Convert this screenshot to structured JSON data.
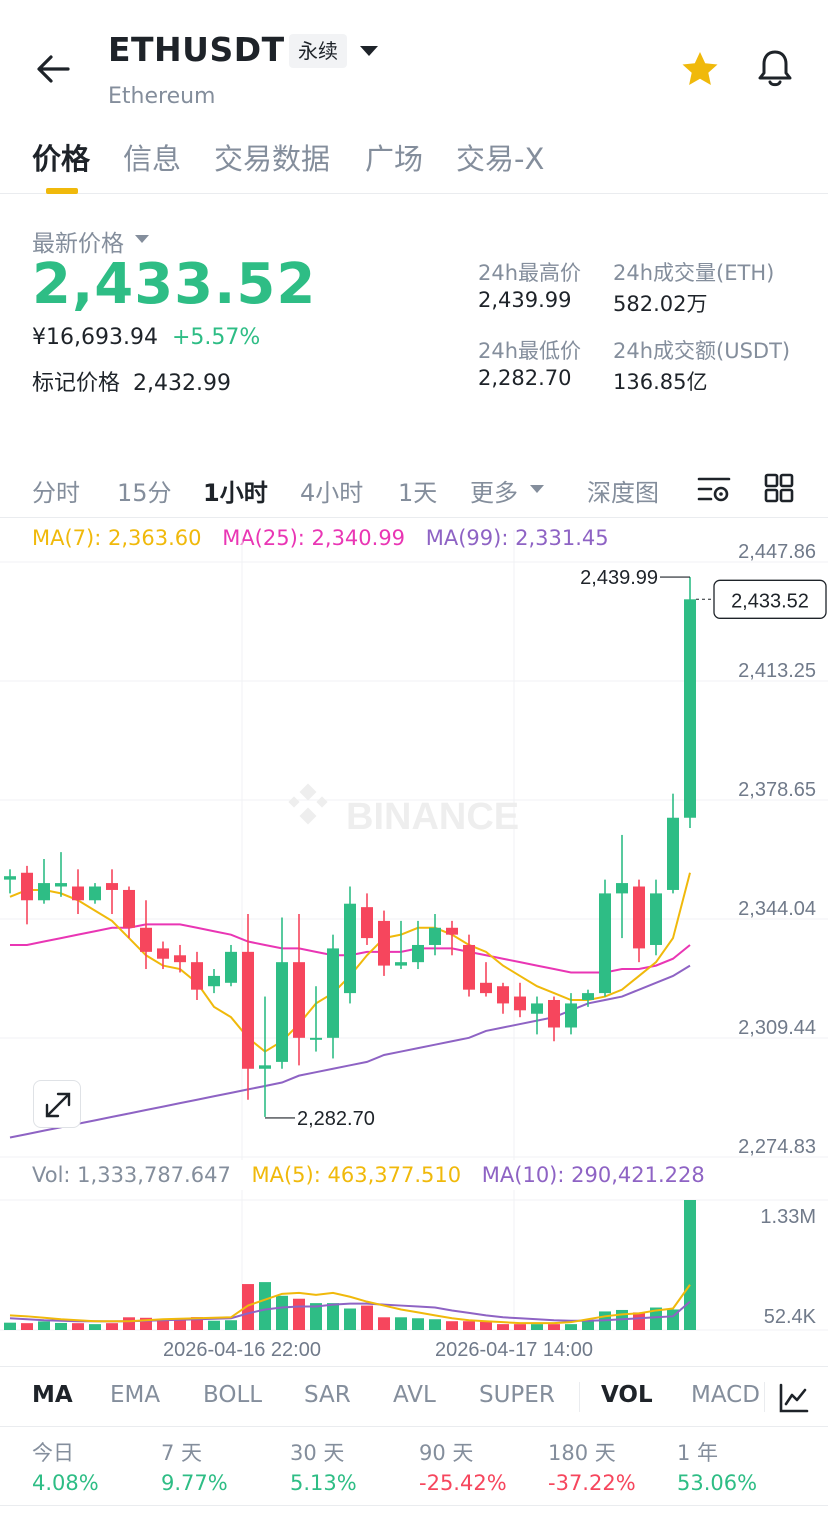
{
  "header": {
    "symbol": "ETHUSDT",
    "badge": "永续",
    "subtitle": "Ethereum"
  },
  "tabs": [
    {
      "label": "价格",
      "active": true
    },
    {
      "label": "信息"
    },
    {
      "label": "交易数据"
    },
    {
      "label": "广场"
    },
    {
      "label": "交易-X"
    }
  ],
  "price": {
    "last_label": "最新价格",
    "last": "2,433.52",
    "cny": "¥16,693.94",
    "change": "+5.57%",
    "mark_label": "标记价格",
    "mark": "2,432.99"
  },
  "stats": {
    "high_label": "24h最高价",
    "high": "2,439.99",
    "vol_label": "24h成交量(ETH)",
    "vol": "582.02万",
    "low_label": "24h最低价",
    "low": "2,282.70",
    "turnover_label": "24h成交额(USDT)",
    "turnover": "136.85亿"
  },
  "intervals": [
    {
      "label": "分时"
    },
    {
      "label": "15分"
    },
    {
      "label": "1小时",
      "active": true
    },
    {
      "label": "4小时"
    },
    {
      "label": "1天"
    },
    {
      "label": "更多"
    },
    {
      "label": "深度图"
    }
  ],
  "ma_legend": {
    "ma7": "MA(7): 2,363.60",
    "ma25": "MA(25): 2,340.99",
    "ma99": "MA(99): 2,331.45"
  },
  "vol_legend": {
    "vol": "Vol: 1,333,787.647",
    "ma5": "MA(5): 463,377.510",
    "ma10": "MA(10): 290,421.228"
  },
  "colors": {
    "up": "#2ebd85",
    "down": "#f6465d",
    "ma7": "#f0b90b",
    "ma25": "#e936b4",
    "ma99": "#8e63c4",
    "accent": "#f0b90b"
  },
  "chart_data": {
    "type": "candlestick",
    "price_axis": [
      "2,447.86",
      "2,413.25",
      "2,378.65",
      "2,344.04",
      "2,309.44",
      "2,274.83"
    ],
    "ylim": [
      2274.83,
      2447.86
    ],
    "current_price": 2433.52,
    "current_price_label": "2,433.52",
    "high_marker": 2439.99,
    "high_marker_label": "2,439.99",
    "low_marker": 2282.7,
    "low_marker_label": "2,282.70",
    "x_labels": [
      "2026-04-16 22:00",
      "2026-04-17 14:00"
    ],
    "watermark": "BINANCE",
    "candles": [
      {
        "o": 2352,
        "c": 2353,
        "h": 2355,
        "l": 2348
      },
      {
        "o": 2354,
        "c": 2346,
        "h": 2356,
        "l": 2339
      },
      {
        "o": 2346,
        "c": 2351,
        "h": 2358,
        "l": 2345
      },
      {
        "o": 2350,
        "c": 2351,
        "h": 2360,
        "l": 2347
      },
      {
        "o": 2350,
        "c": 2346,
        "h": 2355,
        "l": 2342
      },
      {
        "o": 2346,
        "c": 2350,
        "h": 2351,
        "l": 2345
      },
      {
        "o": 2351,
        "c": 2349,
        "h": 2355,
        "l": 2342
      },
      {
        "o": 2349,
        "c": 2338,
        "h": 2350,
        "l": 2335
      },
      {
        "o": 2338,
        "c": 2331,
        "h": 2346,
        "l": 2326
      },
      {
        "o": 2332,
        "c": 2329,
        "h": 2334,
        "l": 2326
      },
      {
        "o": 2330,
        "c": 2328,
        "h": 2333,
        "l": 2325
      },
      {
        "o": 2328,
        "c": 2320,
        "h": 2331,
        "l": 2317
      },
      {
        "o": 2321,
        "c": 2324,
        "h": 2326,
        "l": 2319
      },
      {
        "o": 2322,
        "c": 2331,
        "h": 2333,
        "l": 2321
      },
      {
        "o": 2331,
        "c": 2297,
        "h": 2342,
        "l": 2288
      },
      {
        "o": 2297,
        "c": 2298,
        "h": 2318,
        "l": 2283
      },
      {
        "o": 2299,
        "c": 2328,
        "h": 2341,
        "l": 2297
      },
      {
        "o": 2328,
        "c": 2306,
        "h": 2342,
        "l": 2298
      },
      {
        "o": 2306,
        "c": 2306,
        "h": 2321,
        "l": 2302
      },
      {
        "o": 2306,
        "c": 2332,
        "h": 2336,
        "l": 2300
      },
      {
        "o": 2319,
        "c": 2345,
        "h": 2350,
        "l": 2316
      },
      {
        "o": 2344,
        "c": 2335,
        "h": 2348,
        "l": 2333
      },
      {
        "o": 2340,
        "c": 2327,
        "h": 2343,
        "l": 2324
      },
      {
        "o": 2327,
        "c": 2328,
        "h": 2340,
        "l": 2326
      },
      {
        "o": 2328,
        "c": 2333,
        "h": 2340,
        "l": 2326
      },
      {
        "o": 2333,
        "c": 2338,
        "h": 2342,
        "l": 2330
      },
      {
        "o": 2338,
        "c": 2336,
        "h": 2340,
        "l": 2330
      },
      {
        "o": 2333,
        "c": 2320,
        "h": 2336,
        "l": 2318
      },
      {
        "o": 2322,
        "c": 2319,
        "h": 2328,
        "l": 2318
      },
      {
        "o": 2321,
        "c": 2316,
        "h": 2322,
        "l": 2313
      },
      {
        "o": 2318,
        "c": 2314,
        "h": 2322,
        "l": 2312
      },
      {
        "o": 2313,
        "c": 2316,
        "h": 2318,
        "l": 2307
      },
      {
        "o": 2317,
        "c": 2309,
        "h": 2318,
        "l": 2305
      },
      {
        "o": 2309,
        "c": 2316,
        "h": 2319,
        "l": 2307
      },
      {
        "o": 2317,
        "c": 2319,
        "h": 2320,
        "l": 2315
      },
      {
        "o": 2319,
        "c": 2348,
        "h": 2352,
        "l": 2318
      },
      {
        "o": 2348,
        "c": 2351,
        "h": 2365,
        "l": 2335
      },
      {
        "o": 2350,
        "c": 2332,
        "h": 2352,
        "l": 2328
      },
      {
        "o": 2333,
        "c": 2348,
        "h": 2352,
        "l": 2330
      },
      {
        "o": 2349,
        "c": 2370,
        "h": 2377,
        "l": 2348
      },
      {
        "o": 2370,
        "c": 2433.52,
        "h": 2439.99,
        "l": 2367
      }
    ],
    "ma7": [
      2347,
      2349,
      2349,
      2348,
      2346,
      2343,
      2340,
      2335,
      2330,
      2327,
      2326,
      2322,
      2315,
      2312,
      2306,
      2302,
      2305,
      2310,
      2316,
      2319,
      2324,
      2330,
      2335,
      2336,
      2338,
      2338,
      2336,
      2333,
      2331,
      2327,
      2324,
      2321,
      2319,
      2317,
      2317,
      2318,
      2320,
      2324,
      2328,
      2335,
      2354
    ],
    "ma25": [
      2333,
      2333,
      2334,
      2335,
      2336,
      2337,
      2338,
      2338,
      2339,
      2339,
      2339,
      2338,
      2337,
      2336,
      2334,
      2333,
      2332,
      2332,
      2331,
      2330,
      2330,
      2331,
      2331,
      2331,
      2332,
      2332,
      2332,
      2331,
      2330,
      2329,
      2328,
      2327,
      2326,
      2325,
      2325,
      2325,
      2326,
      2326,
      2327,
      2329,
      2333
    ],
    "ma99": [
      2277,
      2278,
      2279,
      2280,
      2281,
      2282,
      2283,
      2284,
      2285,
      2286,
      2287,
      2288,
      2289,
      2290,
      2291,
      2292,
      2293,
      2295,
      2296,
      2297,
      2298,
      2299,
      2301,
      2302,
      2303,
      2304,
      2305,
      2306,
      2308,
      2309,
      2310,
      2311,
      2312,
      2314,
      2316,
      2317,
      2318,
      2320,
      2322,
      2324,
      2327
    ],
    "volume_axis": [
      "1.33M",
      "52.4K"
    ],
    "volumes": [
      75,
      70,
      88,
      72,
      70,
      60,
      70,
      130,
      125,
      105,
      110,
      132,
      95,
      100,
      470,
      490,
      350,
      320,
      275,
      275,
      220,
      250,
      130,
      130,
      120,
      110,
      90,
      90,
      85,
      60,
      60,
      60,
      60,
      60,
      90,
      190,
      205,
      180,
      230,
      210,
      1330
    ],
    "vol_ma5": [
      150,
      140,
      125,
      110,
      100,
      90,
      90,
      90,
      100,
      110,
      115,
      120,
      125,
      130,
      250,
      310,
      370,
      380,
      360,
      380,
      340,
      290,
      250,
      210,
      180,
      150,
      120,
      100,
      90,
      80,
      70,
      70,
      70,
      80,
      110,
      140,
      160,
      170,
      200,
      220,
      463
    ],
    "vol_ma10": [
      120,
      110,
      100,
      95,
      90,
      90,
      88,
      90,
      95,
      100,
      105,
      110,
      115,
      120,
      170,
      210,
      230,
      240,
      240,
      260,
      270,
      270,
      260,
      250,
      240,
      230,
      200,
      175,
      150,
      130,
      120,
      110,
      100,
      95,
      95,
      100,
      110,
      120,
      130,
      140,
      290
    ]
  },
  "indicators": [
    {
      "label": "MA",
      "active": true
    },
    {
      "label": "EMA"
    },
    {
      "label": "BOLL"
    },
    {
      "label": "SAR"
    },
    {
      "label": "AVL"
    },
    {
      "label": "SUPER"
    },
    {
      "label": "VOL",
      "active": true
    },
    {
      "label": "MACD"
    }
  ],
  "performance": [
    {
      "label": "今日",
      "value": "4.08%",
      "dir": "up"
    },
    {
      "label": "7 天",
      "value": "9.77%",
      "dir": "up"
    },
    {
      "label": "30 天",
      "value": "5.13%",
      "dir": "up"
    },
    {
      "label": "90 天",
      "value": "-25.42%",
      "dir": "down"
    },
    {
      "label": "180 天",
      "value": "-37.22%",
      "dir": "down"
    },
    {
      "label": "1 年",
      "value": "53.06%",
      "dir": "up"
    }
  ]
}
